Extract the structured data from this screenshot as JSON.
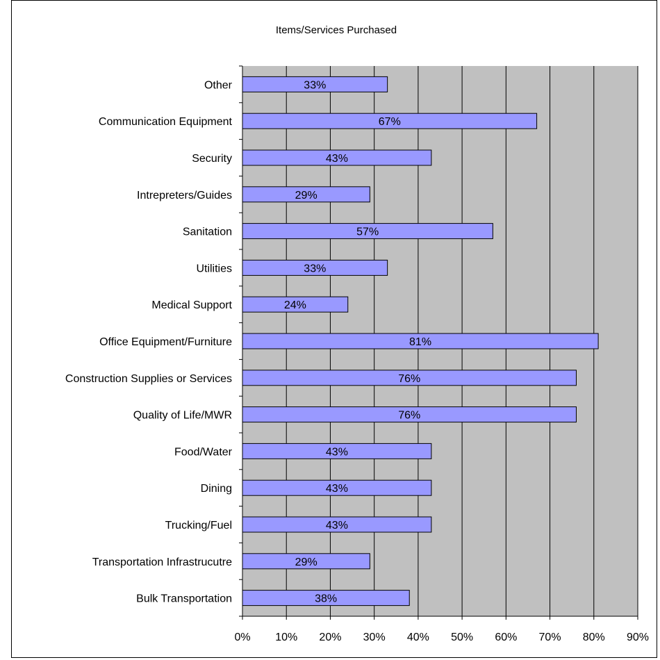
{
  "chart_data": {
    "type": "bar",
    "orientation": "horizontal",
    "title": "Items/Services Purchased",
    "xlabel": "",
    "ylabel": "",
    "categories": [
      "Other",
      "Communication Equipment",
      "Security",
      "Intrepreters/Guides",
      "Sanitation",
      "Utilities",
      "Medical Support",
      "Office Equipment/Furniture",
      "Construction Supplies or Services",
      "Quality of Life/MWR",
      "Food/Water",
      "Dining",
      "Trucking/Fuel",
      "Transportation Infrastrucutre",
      "Bulk Transportation"
    ],
    "values": [
      33,
      67,
      43,
      29,
      57,
      33,
      24,
      81,
      76,
      76,
      43,
      43,
      43,
      29,
      38
    ],
    "value_labels": [
      "33%",
      "67%",
      "43%",
      "29%",
      "57%",
      "33%",
      "24%",
      "81%",
      "76%",
      "76%",
      "43%",
      "43%",
      "43%",
      "29%",
      "38%"
    ],
    "xlim": [
      0,
      90
    ],
    "xticks": [
      0,
      10,
      20,
      30,
      40,
      50,
      60,
      70,
      80,
      90
    ],
    "xtick_labels": [
      "0%",
      "10%",
      "20%",
      "30%",
      "40%",
      "50%",
      "60%",
      "70%",
      "80%",
      "90%"
    ],
    "grid": "vertical",
    "legend": "none",
    "colors": {
      "bar_fill": "#9999ff",
      "bar_stroke": "#000000",
      "plot_background": "#c0c0c0",
      "grid": "#000000"
    }
  }
}
